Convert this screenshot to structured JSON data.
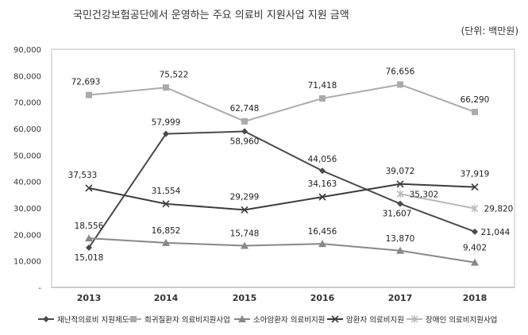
{
  "title": "국민건강보험공단에서 운영하는 주요 의료비 지원사업 지원 금액",
  "unit": "(단위: 백만원)",
  "chart_data": {
    "type": "line",
    "categories": [
      "2013",
      "2014",
      "2015",
      "2016",
      "2017",
      "2018"
    ],
    "ylim": [
      0,
      90000
    ],
    "yticks": [
      "-",
      "10,000",
      "20,000",
      "30,000",
      "40,000",
      "50,000",
      "60,000",
      "70,000",
      "80,000",
      "90,000"
    ],
    "ytick_values": [
      0,
      10000,
      20000,
      30000,
      40000,
      50000,
      60000,
      70000,
      80000,
      90000
    ],
    "grid": false,
    "legend_position": "bottom",
    "series": [
      {
        "name": "재난적의료비 지원제도",
        "color": "#4a4a4a",
        "marker": "diamond",
        "values": [
          15018,
          57999,
          58960,
          44056,
          31607,
          21044
        ],
        "labels": [
          "15,018",
          "57,999",
          "58,960",
          "44,056",
          "31,607",
          "21,044"
        ]
      },
      {
        "name": "희귀질환자 의료비지원사업",
        "color": "#ababab",
        "marker": "square",
        "values": [
          72693,
          75522,
          62748,
          71418,
          76656,
          66290
        ],
        "labels": [
          "72,693",
          "75,522",
          "62,748",
          "71,418",
          "76,656",
          "66,290"
        ]
      },
      {
        "name": "소아암환자 의료비지원",
        "color": "#888888",
        "marker": "triangle",
        "values": [
          18556,
          16852,
          15748,
          16456,
          13870,
          9402
        ],
        "labels": [
          "18,556",
          "16,852",
          "15,748",
          "16,456",
          "13,870",
          "9,402"
        ]
      },
      {
        "name": "암환자 의료비지원",
        "color": "#3c3c3c",
        "marker": "x",
        "values": [
          37533,
          31554,
          29299,
          34163,
          39072,
          37919
        ],
        "labels": [
          "37,533",
          "31,554",
          "29,299",
          "34,163",
          "39,072",
          "37,919"
        ]
      },
      {
        "name": "장애인 의료비지원사업",
        "color": "#b8b8b8",
        "marker": "star",
        "values": [
          null,
          null,
          null,
          null,
          35302,
          29820
        ],
        "labels": [
          "",
          "",
          "",
          "",
          "35,302",
          "29,820"
        ]
      }
    ]
  }
}
